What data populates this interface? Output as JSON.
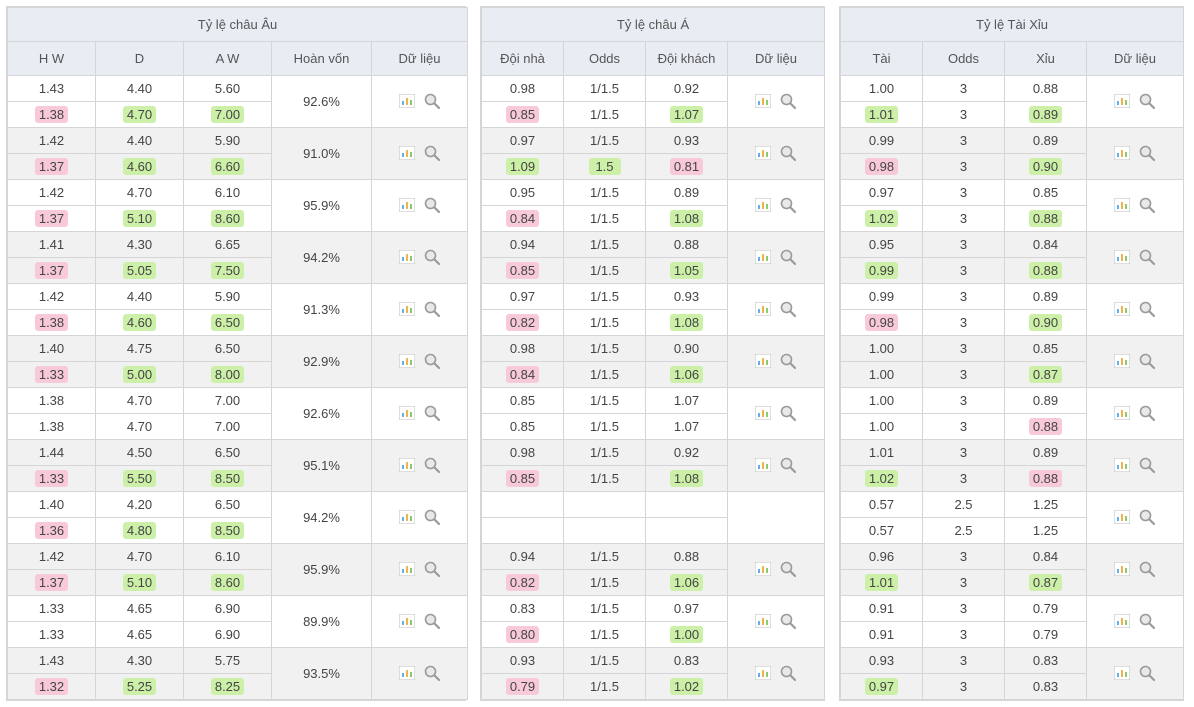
{
  "colors": {
    "header_bg": "#e8edf3",
    "border": "#d5d5d5",
    "row_bg": "#ffffff",
    "row_alt_bg": "#f1f1f1",
    "hi_bg": "#ccf0a8",
    "lo_bg": "#f8c9d9",
    "text": "#444444"
  },
  "tables": {
    "eu": {
      "title": "Tỷ lệ châu Âu",
      "headers": [
        "H W",
        "D",
        "A W",
        "Hoàn vốn",
        "Dữ liệu"
      ],
      "rows": [
        {
          "a": [
            {
              "v": "1.43"
            },
            {
              "v": "4.40"
            },
            {
              "v": "5.60"
            }
          ],
          "b": [
            {
              "v": "1.38",
              "c": "lo"
            },
            {
              "v": "4.70",
              "c": "hi"
            },
            {
              "v": "7.00",
              "c": "hi"
            }
          ],
          "ret": "92.6%"
        },
        {
          "a": [
            {
              "v": "1.42"
            },
            {
              "v": "4.40"
            },
            {
              "v": "5.90"
            }
          ],
          "b": [
            {
              "v": "1.37",
              "c": "lo"
            },
            {
              "v": "4.60",
              "c": "hi"
            },
            {
              "v": "6.60",
              "c": "hi"
            }
          ],
          "ret": "91.0%"
        },
        {
          "a": [
            {
              "v": "1.42"
            },
            {
              "v": "4.70"
            },
            {
              "v": "6.10"
            }
          ],
          "b": [
            {
              "v": "1.37",
              "c": "lo"
            },
            {
              "v": "5.10",
              "c": "hi"
            },
            {
              "v": "8.60",
              "c": "hi"
            }
          ],
          "ret": "95.9%"
        },
        {
          "a": [
            {
              "v": "1.41"
            },
            {
              "v": "4.30"
            },
            {
              "v": "6.65"
            }
          ],
          "b": [
            {
              "v": "1.37",
              "c": "lo"
            },
            {
              "v": "5.05",
              "c": "hi"
            },
            {
              "v": "7.50",
              "c": "hi"
            }
          ],
          "ret": "94.2%"
        },
        {
          "a": [
            {
              "v": "1.42"
            },
            {
              "v": "4.40"
            },
            {
              "v": "5.90"
            }
          ],
          "b": [
            {
              "v": "1.38",
              "c": "lo"
            },
            {
              "v": "4.60",
              "c": "hi"
            },
            {
              "v": "6.50",
              "c": "hi"
            }
          ],
          "ret": "91.3%"
        },
        {
          "a": [
            {
              "v": "1.40"
            },
            {
              "v": "4.75"
            },
            {
              "v": "6.50"
            }
          ],
          "b": [
            {
              "v": "1.33",
              "c": "lo"
            },
            {
              "v": "5.00",
              "c": "hi"
            },
            {
              "v": "8.00",
              "c": "hi"
            }
          ],
          "ret": "92.9%"
        },
        {
          "a": [
            {
              "v": "1.38"
            },
            {
              "v": "4.70"
            },
            {
              "v": "7.00"
            }
          ],
          "b": [
            {
              "v": "1.38"
            },
            {
              "v": "4.70"
            },
            {
              "v": "7.00"
            }
          ],
          "ret": "92.6%"
        },
        {
          "a": [
            {
              "v": "1.44"
            },
            {
              "v": "4.50"
            },
            {
              "v": "6.50"
            }
          ],
          "b": [
            {
              "v": "1.33",
              "c": "lo"
            },
            {
              "v": "5.50",
              "c": "hi"
            },
            {
              "v": "8.50",
              "c": "hi"
            }
          ],
          "ret": "95.1%"
        },
        {
          "a": [
            {
              "v": "1.40"
            },
            {
              "v": "4.20"
            },
            {
              "v": "6.50"
            }
          ],
          "b": [
            {
              "v": "1.36",
              "c": "lo"
            },
            {
              "v": "4.80",
              "c": "hi"
            },
            {
              "v": "8.50",
              "c": "hi"
            }
          ],
          "ret": "94.2%"
        },
        {
          "a": [
            {
              "v": "1.42"
            },
            {
              "v": "4.70"
            },
            {
              "v": "6.10"
            }
          ],
          "b": [
            {
              "v": "1.37",
              "c": "lo"
            },
            {
              "v": "5.10",
              "c": "hi"
            },
            {
              "v": "8.60",
              "c": "hi"
            }
          ],
          "ret": "95.9%"
        },
        {
          "a": [
            {
              "v": "1.33"
            },
            {
              "v": "4.65"
            },
            {
              "v": "6.90"
            }
          ],
          "b": [
            {
              "v": "1.33"
            },
            {
              "v": "4.65"
            },
            {
              "v": "6.90"
            }
          ],
          "ret": "89.9%"
        },
        {
          "a": [
            {
              "v": "1.43"
            },
            {
              "v": "4.30"
            },
            {
              "v": "5.75"
            }
          ],
          "b": [
            {
              "v": "1.32",
              "c": "lo"
            },
            {
              "v": "5.25",
              "c": "hi"
            },
            {
              "v": "8.25",
              "c": "hi"
            }
          ],
          "ret": "93.5%"
        }
      ]
    },
    "asia": {
      "title": "Tỷ lệ châu Á",
      "headers": [
        "Đội nhà",
        "Odds",
        "Đội khách",
        "Dữ liệu"
      ],
      "rows": [
        {
          "a": [
            {
              "v": "0.98"
            },
            {
              "v": "1/1.5"
            },
            {
              "v": "0.92"
            }
          ],
          "b": [
            {
              "v": "0.85",
              "c": "lo"
            },
            {
              "v": "1/1.5"
            },
            {
              "v": "1.07",
              "c": "hi"
            }
          ]
        },
        {
          "a": [
            {
              "v": "0.97"
            },
            {
              "v": "1/1.5"
            },
            {
              "v": "0.93"
            }
          ],
          "b": [
            {
              "v": "1.09",
              "c": "hi"
            },
            {
              "v": "1.5",
              "c": "hi"
            },
            {
              "v": "0.81",
              "c": "lo"
            }
          ]
        },
        {
          "a": [
            {
              "v": "0.95"
            },
            {
              "v": "1/1.5"
            },
            {
              "v": "0.89"
            }
          ],
          "b": [
            {
              "v": "0.84",
              "c": "lo"
            },
            {
              "v": "1/1.5"
            },
            {
              "v": "1.08",
              "c": "hi"
            }
          ]
        },
        {
          "a": [
            {
              "v": "0.94"
            },
            {
              "v": "1/1.5"
            },
            {
              "v": "0.88"
            }
          ],
          "b": [
            {
              "v": "0.85",
              "c": "lo"
            },
            {
              "v": "1/1.5"
            },
            {
              "v": "1.05",
              "c": "hi"
            }
          ]
        },
        {
          "a": [
            {
              "v": "0.97"
            },
            {
              "v": "1/1.5"
            },
            {
              "v": "0.93"
            }
          ],
          "b": [
            {
              "v": "0.82",
              "c": "lo"
            },
            {
              "v": "1/1.5"
            },
            {
              "v": "1.08",
              "c": "hi"
            }
          ]
        },
        {
          "a": [
            {
              "v": "0.98"
            },
            {
              "v": "1/1.5"
            },
            {
              "v": "0.90"
            }
          ],
          "b": [
            {
              "v": "0.84",
              "c": "lo"
            },
            {
              "v": "1/1.5"
            },
            {
              "v": "1.06",
              "c": "hi"
            }
          ]
        },
        {
          "a": [
            {
              "v": "0.85"
            },
            {
              "v": "1/1.5"
            },
            {
              "v": "1.07"
            }
          ],
          "b": [
            {
              "v": "0.85"
            },
            {
              "v": "1/1.5"
            },
            {
              "v": "1.07"
            }
          ]
        },
        {
          "a": [
            {
              "v": "0.98"
            },
            {
              "v": "1/1.5"
            },
            {
              "v": "0.92"
            }
          ],
          "b": [
            {
              "v": "0.85",
              "c": "lo"
            },
            {
              "v": "1/1.5"
            },
            {
              "v": "1.08",
              "c": "hi"
            }
          ]
        },
        {
          "empty": true
        },
        {
          "a": [
            {
              "v": "0.94"
            },
            {
              "v": "1/1.5"
            },
            {
              "v": "0.88"
            }
          ],
          "b": [
            {
              "v": "0.82",
              "c": "lo"
            },
            {
              "v": "1/1.5"
            },
            {
              "v": "1.06",
              "c": "hi"
            }
          ]
        },
        {
          "a": [
            {
              "v": "0.83"
            },
            {
              "v": "1/1.5"
            },
            {
              "v": "0.97"
            }
          ],
          "b": [
            {
              "v": "0.80",
              "c": "lo"
            },
            {
              "v": "1/1.5"
            },
            {
              "v": "1.00",
              "c": "hi"
            }
          ]
        },
        {
          "a": [
            {
              "v": "0.93"
            },
            {
              "v": "1/1.5"
            },
            {
              "v": "0.83"
            }
          ],
          "b": [
            {
              "v": "0.79",
              "c": "lo"
            },
            {
              "v": "1/1.5"
            },
            {
              "v": "1.02",
              "c": "hi"
            }
          ]
        }
      ]
    },
    "ou": {
      "title": "Tỷ lệ Tài Xỉu",
      "headers": [
        "Tài",
        "Odds",
        "Xỉu",
        "Dữ liệu"
      ],
      "rows": [
        {
          "a": [
            {
              "v": "1.00"
            },
            {
              "v": "3"
            },
            {
              "v": "0.88"
            }
          ],
          "b": [
            {
              "v": "1.01",
              "c": "hi"
            },
            {
              "v": "3"
            },
            {
              "v": "0.89",
              "c": "hi"
            }
          ]
        },
        {
          "a": [
            {
              "v": "0.99"
            },
            {
              "v": "3"
            },
            {
              "v": "0.89"
            }
          ],
          "b": [
            {
              "v": "0.98",
              "c": "lo"
            },
            {
              "v": "3"
            },
            {
              "v": "0.90",
              "c": "hi"
            }
          ]
        },
        {
          "a": [
            {
              "v": "0.97"
            },
            {
              "v": "3"
            },
            {
              "v": "0.85"
            }
          ],
          "b": [
            {
              "v": "1.02",
              "c": "hi"
            },
            {
              "v": "3"
            },
            {
              "v": "0.88",
              "c": "hi"
            }
          ]
        },
        {
          "a": [
            {
              "v": "0.95"
            },
            {
              "v": "3"
            },
            {
              "v": "0.84"
            }
          ],
          "b": [
            {
              "v": "0.99",
              "c": "hi"
            },
            {
              "v": "3"
            },
            {
              "v": "0.88",
              "c": "hi"
            }
          ]
        },
        {
          "a": [
            {
              "v": "0.99"
            },
            {
              "v": "3"
            },
            {
              "v": "0.89"
            }
          ],
          "b": [
            {
              "v": "0.98",
              "c": "lo"
            },
            {
              "v": "3"
            },
            {
              "v": "0.90",
              "c": "hi"
            }
          ]
        },
        {
          "a": [
            {
              "v": "1.00"
            },
            {
              "v": "3"
            },
            {
              "v": "0.85"
            }
          ],
          "b": [
            {
              "v": "1.00"
            },
            {
              "v": "3"
            },
            {
              "v": "0.87",
              "c": "hi"
            }
          ]
        },
        {
          "a": [
            {
              "v": "1.00"
            },
            {
              "v": "3"
            },
            {
              "v": "0.89"
            }
          ],
          "b": [
            {
              "v": "1.00"
            },
            {
              "v": "3"
            },
            {
              "v": "0.88",
              "c": "lo"
            }
          ]
        },
        {
          "a": [
            {
              "v": "1.01"
            },
            {
              "v": "3"
            },
            {
              "v": "0.89"
            }
          ],
          "b": [
            {
              "v": "1.02",
              "c": "hi"
            },
            {
              "v": "3"
            },
            {
              "v": "0.88",
              "c": "lo"
            }
          ]
        },
        {
          "a": [
            {
              "v": "0.57"
            },
            {
              "v": "2.5"
            },
            {
              "v": "1.25"
            }
          ],
          "b": [
            {
              "v": "0.57"
            },
            {
              "v": "2.5"
            },
            {
              "v": "1.25"
            }
          ]
        },
        {
          "a": [
            {
              "v": "0.96"
            },
            {
              "v": "3"
            },
            {
              "v": "0.84"
            }
          ],
          "b": [
            {
              "v": "1.01",
              "c": "hi"
            },
            {
              "v": "3"
            },
            {
              "v": "0.87",
              "c": "hi"
            }
          ]
        },
        {
          "a": [
            {
              "v": "0.91"
            },
            {
              "v": "3"
            },
            {
              "v": "0.79"
            }
          ],
          "b": [
            {
              "v": "0.91"
            },
            {
              "v": "3"
            },
            {
              "v": "0.79"
            }
          ]
        },
        {
          "a": [
            {
              "v": "0.93"
            },
            {
              "v": "3"
            },
            {
              "v": "0.83"
            }
          ],
          "b": [
            {
              "v": "0.97",
              "c": "hi"
            },
            {
              "v": "3"
            },
            {
              "v": "0.83"
            }
          ]
        }
      ]
    }
  }
}
